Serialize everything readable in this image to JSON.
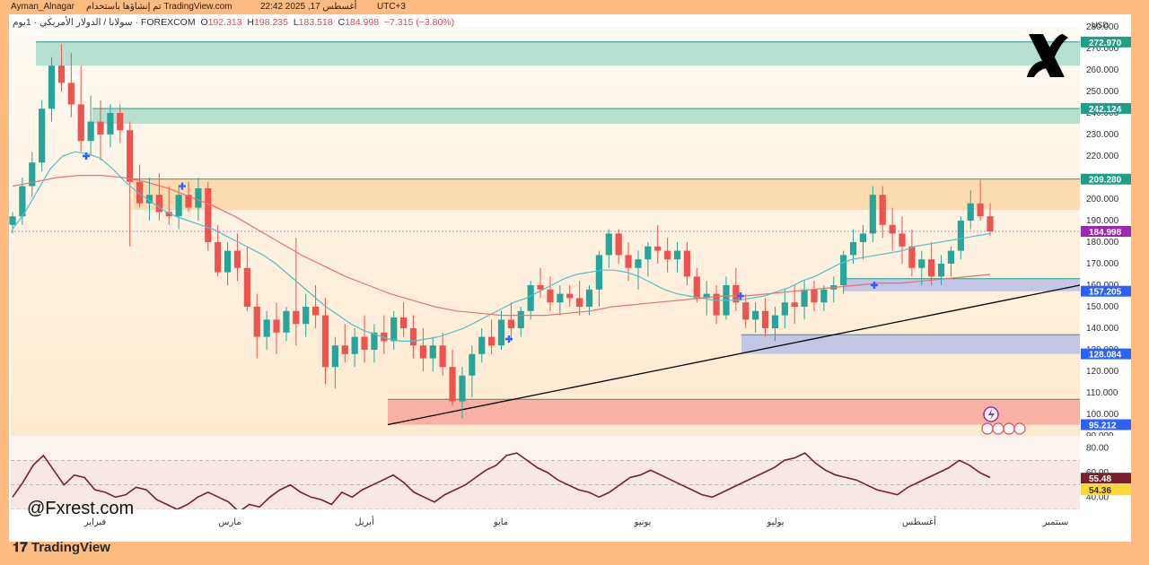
{
  "header": {
    "author": "Ayman_Alnagar",
    "published": "تم إنشاؤها باستخدام TradingView.com",
    "datetime": "22:42 2025 ,17 أغسطس",
    "tz": "UTC+3"
  },
  "legend": {
    "symbol": "سولانا / الدولار الأمريكي · 1يوم · FOREXCOM",
    "o_label": "O",
    "o": "192.313",
    "h_label": "H",
    "h": "198.235",
    "l_label": "L",
    "l": "183.518",
    "c_label": "C",
    "c": "184.998",
    "change": "−7.315 (−3.80%)"
  },
  "currency": "USD",
  "watermark": "@Fxrest.com",
  "tv_logo": "TradingView",
  "colors": {
    "up": "#26a69a",
    "down": "#ef5350",
    "sma_fast": "#4fc3c7",
    "sma_slow": "#e57373",
    "rsi": "#7a1f2b"
  },
  "chart_data": {
    "type": "candlestick",
    "y_axis": {
      "min": 90,
      "max": 280,
      "ticks": [
        "90.000",
        "100.000",
        "110.000",
        "120.000",
        "130.000",
        "140.000",
        "150.000",
        "160.000",
        "170.000",
        "180.000",
        "190.000",
        "200.000",
        "210.000",
        "220.000",
        "230.000",
        "240.000",
        "250.000",
        "260.000",
        "270.000",
        "280.000"
      ]
    },
    "x_axis": {
      "labels": [
        "فبراير",
        "مارس",
        "أبريل",
        "مايو",
        "يونيو",
        "يوليو",
        "أغسطس",
        "سبتمبر"
      ]
    },
    "price_labels": [
      {
        "text": "272.970",
        "value": 272.97,
        "color": "#1f9e89"
      },
      {
        "text": "242.124",
        "value": 242.124,
        "color": "#1f9e89"
      },
      {
        "text": "209.280",
        "value": 209.28,
        "color": "#1f9e89"
      },
      {
        "text": "184.998",
        "value": 184.998,
        "color": "#9c27b0"
      },
      {
        "text": "157.205",
        "value": 157.205,
        "color": "#2962ff"
      },
      {
        "text": "128.084",
        "value": 128.084,
        "color": "#2962ff"
      },
      {
        "text": "95.212",
        "value": 95.212,
        "color": "#2962ff"
      }
    ],
    "zones": [
      {
        "type": "supply",
        "from": 262,
        "to": 273,
        "color": "#a8dcc9"
      },
      {
        "type": "supply",
        "from": 235,
        "to": 242.1,
        "color": "#a8dcc9"
      },
      {
        "type": "resistance",
        "from": 195,
        "to": 209.3,
        "color": "#fdd6a8"
      },
      {
        "type": "demand",
        "from": 157.2,
        "to": 163,
        "color": "#b8c0e6"
      },
      {
        "type": "demand",
        "from": 128.1,
        "to": 137,
        "color": "#b8c0e6"
      },
      {
        "type": "demand",
        "from": 95.2,
        "to": 107,
        "color": "#f7a79a"
      }
    ],
    "trendline": {
      "from": 95.2,
      "to": 160
    },
    "candles": [
      [
        188,
        194,
        184,
        192
      ],
      [
        192,
        210,
        188,
        206
      ],
      [
        206,
        222,
        201,
        217
      ],
      [
        217,
        246,
        213,
        242
      ],
      [
        242,
        266,
        236,
        262
      ],
      [
        262,
        272,
        250,
        254
      ],
      [
        254,
        268,
        238,
        244
      ],
      [
        244,
        262,
        222,
        227
      ],
      [
        227,
        248,
        220,
        236
      ],
      [
        236,
        246,
        218,
        230
      ],
      [
        230,
        244,
        224,
        240
      ],
      [
        240,
        244,
        226,
        232
      ],
      [
        232,
        236,
        178,
        208
      ],
      [
        208,
        216,
        196,
        198
      ],
      [
        198,
        210,
        190,
        202
      ],
      [
        202,
        212,
        190,
        194
      ],
      [
        194,
        206,
        188,
        192
      ],
      [
        192,
        206,
        186,
        202
      ],
      [
        202,
        208,
        194,
        196
      ],
      [
        196,
        210,
        190,
        205
      ],
      [
        205,
        208,
        176,
        180
      ],
      [
        180,
        188,
        164,
        166
      ],
      [
        166,
        180,
        160,
        176
      ],
      [
        176,
        184,
        162,
        168
      ],
      [
        168,
        178,
        148,
        150
      ],
      [
        150,
        156,
        126,
        136
      ],
      [
        136,
        148,
        130,
        144
      ],
      [
        144,
        152,
        128,
        138
      ],
      [
        138,
        150,
        134,
        148
      ],
      [
        148,
        182,
        132,
        142
      ],
      [
        142,
        156,
        136,
        150
      ],
      [
        150,
        160,
        140,
        146
      ],
      [
        146,
        154,
        114,
        122
      ],
      [
        122,
        136,
        112,
        132
      ],
      [
        132,
        142,
        124,
        128
      ],
      [
        128,
        140,
        122,
        136
      ],
      [
        136,
        146,
        124,
        130
      ],
      [
        130,
        142,
        124,
        138
      ],
      [
        138,
        146,
        128,
        134
      ],
      [
        134,
        148,
        130,
        145
      ],
      [
        145,
        152,
        136,
        140
      ],
      [
        140,
        146,
        126,
        132
      ],
      [
        132,
        140,
        120,
        126
      ],
      [
        126,
        136,
        120,
        132
      ],
      [
        132,
        138,
        118,
        122
      ],
      [
        122,
        130,
        104,
        106
      ],
      [
        106,
        122,
        98,
        118
      ],
      [
        118,
        132,
        108,
        128
      ],
      [
        128,
        140,
        124,
        136
      ],
      [
        136,
        144,
        128,
        132
      ],
      [
        132,
        148,
        130,
        144
      ],
      [
        144,
        152,
        134,
        140
      ],
      [
        140,
        150,
        136,
        148
      ],
      [
        148,
        162,
        144,
        160
      ],
      [
        160,
        168,
        154,
        158
      ],
      [
        158,
        164,
        148,
        152
      ],
      [
        152,
        160,
        146,
        156
      ],
      [
        156,
        160,
        150,
        154
      ],
      [
        154,
        162,
        146,
        150
      ],
      [
        150,
        160,
        146,
        158
      ],
      [
        158,
        176,
        150,
        174
      ],
      [
        174,
        186,
        168,
        184
      ],
      [
        184,
        186,
        170,
        174
      ],
      [
        174,
        180,
        162,
        168
      ],
      [
        168,
        176,
        158,
        172
      ],
      [
        172,
        180,
        164,
        178
      ],
      [
        178,
        188,
        170,
        176
      ],
      [
        176,
        182,
        166,
        172
      ],
      [
        172,
        180,
        166,
        176
      ],
      [
        176,
        180,
        160,
        164
      ],
      [
        164,
        168,
        152,
        154
      ],
      [
        154,
        162,
        146,
        156
      ],
      [
        156,
        160,
        142,
        146
      ],
      [
        146,
        164,
        144,
        160
      ],
      [
        160,
        168,
        148,
        152
      ],
      [
        152,
        156,
        140,
        144
      ],
      [
        144,
        152,
        138,
        148
      ],
      [
        148,
        154,
        136,
        140
      ],
      [
        140,
        150,
        134,
        146
      ],
      [
        146,
        158,
        140,
        152
      ],
      [
        152,
        160,
        142,
        150
      ],
      [
        150,
        162,
        144,
        158
      ],
      [
        158,
        162,
        148,
        152
      ],
      [
        152,
        160,
        148,
        158
      ],
      [
        158,
        164,
        152,
        160
      ],
      [
        160,
        176,
        156,
        174
      ],
      [
        174,
        186,
        170,
        180
      ],
      [
        180,
        188,
        172,
        184
      ],
      [
        184,
        206,
        180,
        202
      ],
      [
        202,
        206,
        182,
        188
      ],
      [
        188,
        196,
        176,
        184
      ],
      [
        184,
        192,
        170,
        178
      ],
      [
        178,
        186,
        164,
        168
      ],
      [
        168,
        176,
        160,
        172
      ],
      [
        172,
        180,
        160,
        164
      ],
      [
        164,
        174,
        160,
        170
      ],
      [
        170,
        178,
        164,
        176
      ],
      [
        176,
        192,
        172,
        190
      ],
      [
        190,
        204,
        186,
        198
      ],
      [
        198,
        209,
        190,
        192
      ],
      [
        192,
        198,
        183,
        185
      ]
    ],
    "sma_fast": [
      186,
      194,
      204,
      214,
      220,
      222,
      221,
      219,
      214,
      208,
      203,
      199,
      195,
      192,
      190,
      188,
      186,
      183,
      180,
      177,
      174,
      170,
      165,
      160,
      155,
      150,
      146,
      142,
      139,
      137,
      135,
      134,
      134,
      135,
      136,
      138,
      140,
      143,
      146,
      149,
      152,
      154,
      157,
      160,
      163,
      165,
      166,
      167,
      167,
      166,
      164,
      161,
      158,
      156,
      155,
      154,
      153,
      153,
      153,
      154,
      155,
      157,
      159,
      162,
      164,
      167,
      170,
      172,
      173,
      174,
      175,
      176,
      178,
      179,
      180,
      181,
      182,
      183,
      184
    ],
    "sma_slow": [
      206,
      208,
      210,
      211,
      211,
      210,
      208,
      205,
      201,
      197,
      192,
      186,
      180,
      174,
      169,
      164,
      160,
      156,
      153,
      150,
      148,
      147,
      146,
      146,
      146,
      147,
      148,
      150,
      151,
      152,
      153,
      154,
      155,
      155,
      156,
      157,
      158,
      159,
      160,
      161,
      161,
      162,
      163,
      164,
      165
    ],
    "rsi": {
      "value_label": "55.48",
      "ma_label": "54.36",
      "ticks": [
        "80.00",
        "60.00",
        "40.00"
      ],
      "series": [
        40,
        52,
        66,
        74,
        62,
        50,
        58,
        56,
        46,
        44,
        40,
        42,
        48,
        46,
        38,
        34,
        30,
        34,
        40,
        44,
        40,
        36,
        28,
        34,
        32,
        40,
        46,
        50,
        44,
        40,
        38,
        34,
        44,
        40,
        46,
        50,
        54,
        58,
        52,
        44,
        40,
        36,
        42,
        46,
        50,
        56,
        62,
        66,
        74,
        76,
        70,
        64,
        60,
        54,
        50,
        46,
        44,
        40,
        44,
        50,
        56,
        58,
        62,
        58,
        54,
        50,
        46,
        42,
        40,
        44,
        48,
        52,
        56,
        60,
        64,
        70,
        72,
        76,
        68,
        62,
        58,
        56,
        54,
        50,
        46,
        44,
        42,
        48,
        52,
        56,
        60,
        64,
        70,
        66,
        60,
        56
      ]
    }
  }
}
